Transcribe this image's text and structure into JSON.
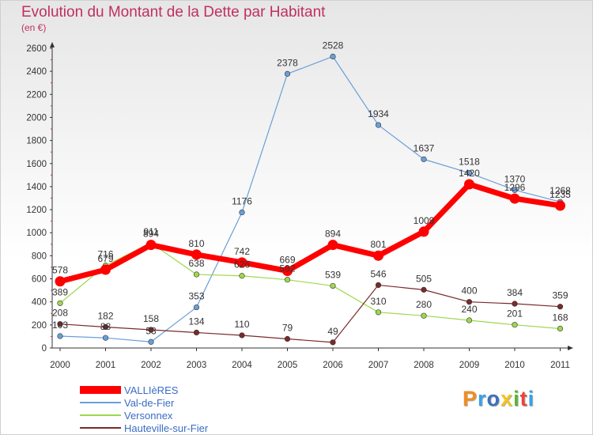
{
  "header": {
    "title": "Evolution du Montant de la Dette par Habitant",
    "unit": "(en €)"
  },
  "brand": {
    "text": "Proxiti",
    "colors": [
      "#f28c1e",
      "#3aa0e8",
      "#3c6fc0",
      "#f5c21b",
      "#5bb431",
      "#e8463c",
      "#3aa0e8"
    ]
  },
  "chart_data": {
    "type": "line",
    "categories": [
      "2000",
      "2001",
      "2002",
      "2003",
      "2004",
      "2005",
      "2006",
      "2007",
      "2008",
      "2009",
      "2010",
      "2011"
    ],
    "yticks": [
      0,
      200,
      400,
      600,
      800,
      1000,
      1200,
      1400,
      1600,
      1800,
      2000,
      2200,
      2400,
      2600
    ],
    "ylim": [
      0,
      2600
    ],
    "grid": false,
    "legend_position": "bottom-left",
    "series": [
      {
        "name": "VALLIèRES",
        "color": "#ff0000",
        "values": [
          578,
          679,
          894,
          810,
          742,
          669,
          894,
          801,
          1009,
          1420,
          1296,
          1235
        ]
      },
      {
        "name": "Val-de-Fier",
        "color": "#6a9fd8",
        "values": [
          103,
          88,
          53,
          353,
          1176,
          2378,
          2528,
          1934,
          1637,
          1518,
          1370,
          1268
        ]
      },
      {
        "name": "Versonnex",
        "color": "#9ed84e",
        "values": [
          389,
          716,
          911,
          638,
          626,
          592,
          539,
          310,
          280,
          240,
          201,
          168
        ]
      },
      {
        "name": "Hauteville-sur-Fier",
        "color": "#7a2a2a",
        "values": [
          208,
          182,
          158,
          134,
          110,
          79,
          49,
          546,
          505,
          400,
          384,
          359
        ]
      }
    ]
  }
}
